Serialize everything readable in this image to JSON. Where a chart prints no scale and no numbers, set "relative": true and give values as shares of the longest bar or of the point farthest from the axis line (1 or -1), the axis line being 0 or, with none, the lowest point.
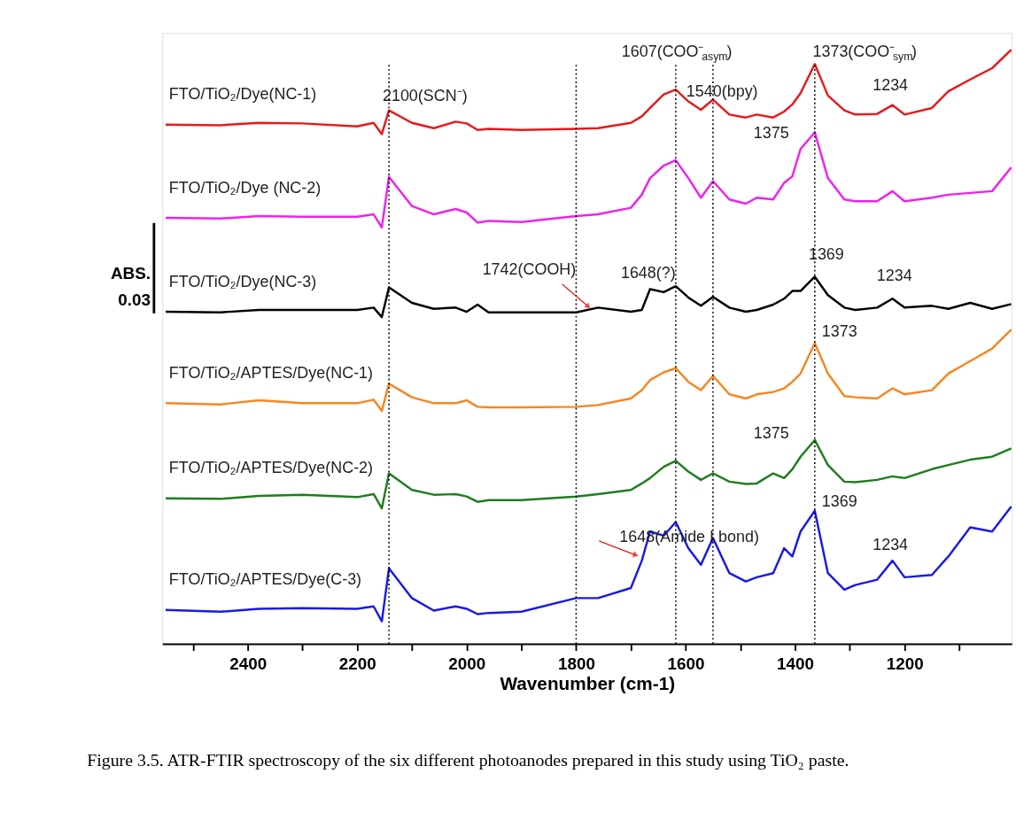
{
  "chart_data": {
    "type": "line",
    "relative": true,
    "xlabel": "Wavenumber (cm-1)",
    "xlim": [
      2556,
      1004
    ],
    "xticks": [
      {
        "value": 2500,
        "label": null
      },
      2400,
      {
        "value": 2300,
        "label": null
      },
      2200,
      {
        "value": 2100,
        "label": null
      },
      2000,
      {
        "value": 1900,
        "label": null
      },
      1800,
      {
        "value": 1700,
        "label": null
      },
      1600,
      {
        "value": 1500,
        "label": null
      },
      1400,
      {
        "value": 1300,
        "label": null
      },
      1200,
      {
        "value": 1100,
        "label": null
      }
    ],
    "x": [
      2550,
      2450,
      2380,
      2300,
      2200,
      2170,
      2155,
      2142,
      2100,
      2060,
      2020,
      2000,
      1980,
      1960,
      1900,
      1800,
      1760,
      1700,
      1680,
      1665,
      1640,
      1618,
      1595,
      1572,
      1550,
      1520,
      1490,
      1470,
      1440,
      1420,
      1405,
      1390,
      1364,
      1340,
      1310,
      1290,
      1250,
      1222,
      1200,
      1150,
      1120,
      1080,
      1040,
      1005
    ],
    "series": [
      {
        "name": "FTO/TiO₂/Dye(NC-1)",
        "color": "#e8191b",
        "values": [
          0.874,
          0.873,
          0.877,
          0.876,
          0.871,
          0.877,
          0.858,
          0.898,
          0.877,
          0.868,
          0.879,
          0.876,
          0.865,
          0.867,
          0.865,
          0.867,
          0.868,
          0.877,
          0.888,
          0.902,
          0.925,
          0.933,
          0.913,
          0.899,
          0.916,
          0.891,
          0.886,
          0.891,
          0.886,
          0.896,
          0.908,
          0.927,
          0.976,
          0.923,
          0.898,
          0.891,
          0.892,
          0.907,
          0.891,
          0.902,
          0.93,
          0.95,
          0.969,
          1.0
        ]
      },
      {
        "name": "FTO/TiO₂/Dye (NC-2)",
        "color": "#ee22ee",
        "values": [
          0.717,
          0.716,
          0.72,
          0.719,
          0.719,
          0.723,
          0.701,
          0.786,
          0.737,
          0.723,
          0.732,
          0.726,
          0.709,
          0.712,
          0.71,
          0.72,
          0.723,
          0.734,
          0.756,
          0.784,
          0.805,
          0.814,
          0.784,
          0.751,
          0.779,
          0.748,
          0.741,
          0.751,
          0.748,
          0.776,
          0.787,
          0.833,
          0.861,
          0.784,
          0.748,
          0.745,
          0.745,
          0.762,
          0.745,
          0.751,
          0.756,
          0.759,
          0.762,
          0.802
        ]
      },
      {
        "name": "FTO/TiO₂/Dye(NC-3)",
        "color": "#000000",
        "values": [
          0.559,
          0.558,
          0.562,
          0.562,
          0.562,
          0.566,
          0.55,
          0.6,
          0.574,
          0.564,
          0.566,
          0.559,
          0.571,
          0.558,
          0.558,
          0.558,
          0.566,
          0.559,
          0.562,
          0.597,
          0.592,
          0.602,
          0.583,
          0.569,
          0.584,
          0.566,
          0.559,
          0.562,
          0.571,
          0.581,
          0.594,
          0.594,
          0.618,
          0.587,
          0.566,
          0.562,
          0.566,
          0.581,
          0.566,
          0.569,
          0.564,
          0.574,
          0.564,
          0.572
        ]
      },
      {
        "name": "FTO/TiO₂/APTES/Dye(NC-1)",
        "color": "#f7861f",
        "values": [
          0.405,
          0.403,
          0.41,
          0.405,
          0.405,
          0.411,
          0.392,
          0.438,
          0.415,
          0.405,
          0.405,
          0.41,
          0.399,
          0.398,
          0.398,
          0.399,
          0.402,
          0.413,
          0.427,
          0.444,
          0.457,
          0.464,
          0.441,
          0.427,
          0.451,
          0.42,
          0.413,
          0.42,
          0.424,
          0.43,
          0.441,
          0.455,
          0.506,
          0.455,
          0.417,
          0.415,
          0.413,
          0.43,
          0.42,
          0.427,
          0.455,
          0.476,
          0.497,
          0.529
        ]
      },
      {
        "name": "FTO/TiO₂/APTES/Dye(NC-2)",
        "color": "#1e7d1e",
        "values": [
          0.245,
          0.244,
          0.249,
          0.251,
          0.247,
          0.252,
          0.228,
          0.287,
          0.259,
          0.251,
          0.252,
          0.248,
          0.239,
          0.242,
          0.242,
          0.248,
          0.252,
          0.259,
          0.27,
          0.279,
          0.298,
          0.308,
          0.29,
          0.276,
          0.287,
          0.273,
          0.269,
          0.27,
          0.287,
          0.279,
          0.294,
          0.315,
          0.343,
          0.301,
          0.273,
          0.272,
          0.276,
          0.282,
          0.279,
          0.294,
          0.301,
          0.31,
          0.315,
          0.329
        ]
      },
      {
        "name": "FTO/TiO₂/APTES/Dye(C-3)",
        "color": "#1a1ae6",
        "values": [
          0.057,
          0.054,
          0.059,
          0.06,
          0.059,
          0.063,
          0.038,
          0.127,
          0.077,
          0.056,
          0.063,
          0.059,
          0.05,
          0.052,
          0.054,
          0.077,
          0.077,
          0.094,
          0.14,
          0.189,
          0.182,
          0.205,
          0.161,
          0.133,
          0.178,
          0.119,
          0.105,
          0.112,
          0.119,
          0.161,
          0.147,
          0.189,
          0.224,
          0.119,
          0.091,
          0.099,
          0.108,
          0.14,
          0.112,
          0.116,
          0.147,
          0.196,
          0.189,
          0.231
        ]
      }
    ],
    "ref_lines": [
      {
        "axis": "x",
        "value": 2142,
        "color": "#000000",
        "line_style": "dotted"
      },
      {
        "axis": "x",
        "value": 1800,
        "color": "#000000",
        "line_style": "dotted"
      },
      {
        "axis": "x",
        "value": 1618,
        "color": "#000000",
        "line_style": "dotted"
      },
      {
        "axis": "x",
        "value": 1550,
        "color": "#000000",
        "line_style": "dotted"
      },
      {
        "axis": "x",
        "value": 1364,
        "color": "#000000",
        "line_style": "dotted"
      }
    ],
    "annotations": [
      "2100(SCN⁻)",
      "1607(COO⁻$_{asym}$)",
      "1373(COO⁻$_{sym}$)",
      "1540(bpy)",
      "1234",
      "1375",
      "1742(COOH)",
      "1648(?)",
      "1369",
      "1234",
      "1373",
      "1375",
      "1369",
      "1648(Amide I bond)",
      "1234",
      "ABS.",
      "0.03",
      "Figure 3.5.  ATR-FTIR spectroscopy of the six different photoanodes prepared in this study using TiO₂ paste."
    ],
    "legend": false,
    "grid": false,
    "marker": "none",
    "line_style": "solid"
  }
}
